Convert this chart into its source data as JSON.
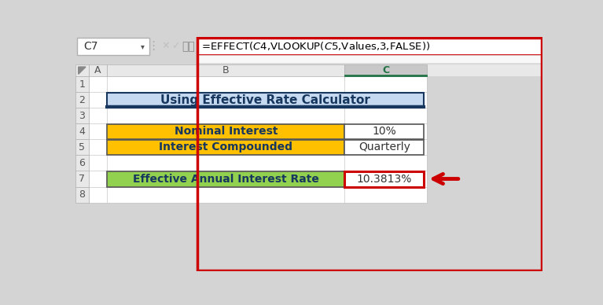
{
  "bg_color": "#d4d4d4",
  "formula_bar_cell_ref": "C7",
  "formula_text": "=EFFECT($C$4,VLOOKUP($C$5,Values,3,FALSE))",
  "formula_bar_border_color": "#cc0000",
  "col_header_bg": "#e8e8e8",
  "col_header_selected_bg": "#c8c8c8",
  "col_header_selected_text": "#217346",
  "col_header_selected_border": "#217346",
  "row_header_bg": "#e8e8e8",
  "sheet_bg": "#ffffff",
  "grid_color": "#c8c8c8",
  "title_text": "Using Effective Rate Calculator",
  "title_bg": "#c5d9f1",
  "title_border_top": "#17375e",
  "title_text_color": "#17375e",
  "label_row4": "Nominal Interest",
  "value_row4": "10%",
  "label_row5": "Interest Compounded",
  "value_row5": "Quarterly",
  "yellow_bg": "#ffc000",
  "yellow_text_color": "#17375e",
  "result_label": "Effective Annual Interest Rate",
  "result_value": "10.3813%",
  "result_bg": "#92d050",
  "result_text_color": "#17375e",
  "result_border_red": "#cc0000",
  "arrow_color": "#cc0000",
  "outer_red_border": "#cc0000",
  "icon_color": "#aaaaaa",
  "fx_color": "#555555"
}
